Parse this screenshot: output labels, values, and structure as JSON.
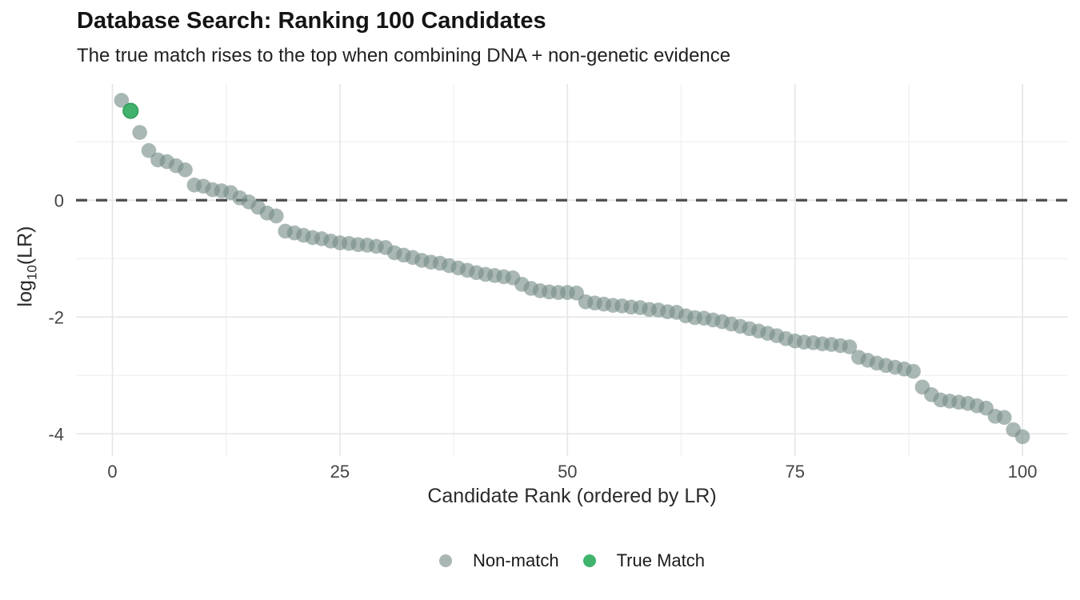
{
  "header": {
    "title": "Database Search: Ranking 100 Candidates",
    "subtitle": "The true match rises to the top when combining DNA + non-genetic evidence"
  },
  "chart_data": {
    "type": "scatter",
    "title": "Database Search: Ranking 100 Candidates",
    "subtitle": "The true match rises to the top when combining DNA + non-genetic evidence",
    "xlabel": "Candidate Rank (ordered by LR)",
    "ylabel": "log10(LR)",
    "ylabel_parts": {
      "pre": "log",
      "sub": "10",
      "post": "(LR)"
    },
    "x_rule": "rank = index + 1",
    "values": [
      1.71,
      1.53,
      1.16,
      0.85,
      0.69,
      0.66,
      0.59,
      0.52,
      0.26,
      0.24,
      0.18,
      0.16,
      0.13,
      0.04,
      -0.03,
      -0.12,
      -0.22,
      -0.27,
      -0.53,
      -0.56,
      -0.6,
      -0.64,
      -0.66,
      -0.7,
      -0.73,
      -0.74,
      -0.76,
      -0.77,
      -0.79,
      -0.81,
      -0.9,
      -0.94,
      -0.98,
      -1.03,
      -1.06,
      -1.08,
      -1.12,
      -1.16,
      -1.2,
      -1.24,
      -1.27,
      -1.29,
      -1.31,
      -1.33,
      -1.44,
      -1.51,
      -1.55,
      -1.57,
      -1.58,
      -1.58,
      -1.59,
      -1.74,
      -1.76,
      -1.78,
      -1.8,
      -1.81,
      -1.83,
      -1.84,
      -1.87,
      -1.88,
      -1.91,
      -1.92,
      -1.98,
      -2.01,
      -2.02,
      -2.05,
      -2.08,
      -2.12,
      -2.16,
      -2.2,
      -2.24,
      -2.28,
      -2.32,
      -2.37,
      -2.41,
      -2.43,
      -2.44,
      -2.46,
      -2.47,
      -2.49,
      -2.51,
      -2.69,
      -2.74,
      -2.79,
      -2.83,
      -2.86,
      -2.89,
      -2.93,
      -3.2,
      -3.33,
      -3.42,
      -3.44,
      -3.46,
      -3.48,
      -3.52,
      -3.56,
      -3.7,
      -3.72,
      -3.93,
      -4.05
    ],
    "true_match_rank": 2,
    "xlim": [
      -4,
      105
    ],
    "ylim": [
      -4.38,
      1.99
    ],
    "x_ticks": [
      0,
      25,
      50,
      75,
      100
    ],
    "x_minor_ticks": [
      12.5,
      37.5,
      62.5,
      87.5
    ],
    "y_ticks": [
      0,
      -2,
      -4
    ],
    "y_minor_ticks": [
      1,
      -1,
      -3
    ],
    "reference_line": {
      "y": 0,
      "style": "dashed"
    },
    "grid": true,
    "legend_position": "bottom-center",
    "colors": {
      "nonmatch_fill": "#768D88",
      "nonmatch_opacity": 0.62,
      "match_fill": "#42B16B",
      "match_stroke": "#2E9B59",
      "reference_line": "#4D4D4D",
      "grid_major": "#E4E6E6",
      "grid_minor": "#F0F1F1",
      "tick_label": "#444444"
    },
    "marker_radius": 9.3
  },
  "legend": {
    "items": [
      {
        "label": "Non-match",
        "color": "#A9B6B3"
      },
      {
        "label": "True Match",
        "color": "#3FB46D"
      }
    ]
  }
}
